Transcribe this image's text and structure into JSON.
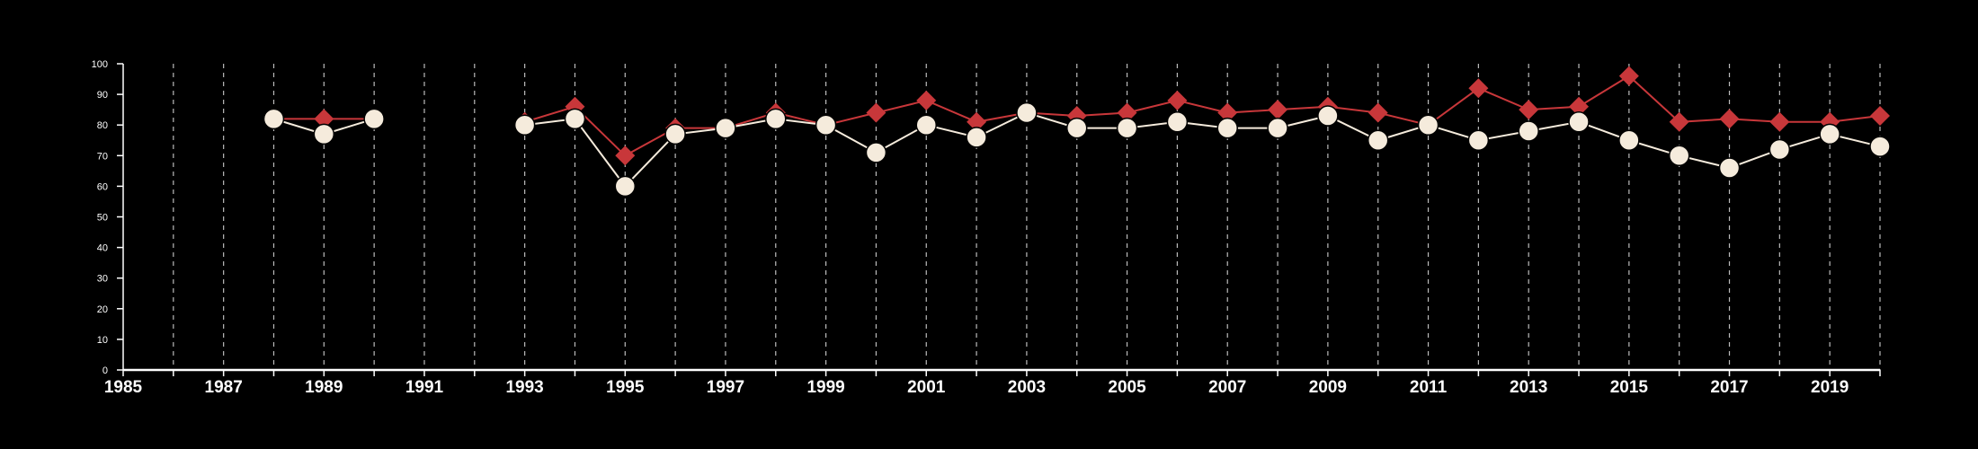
{
  "chart_data": {
    "type": "line",
    "title": "",
    "xlabel": "",
    "ylabel": "",
    "xlim": [
      1985,
      2020
    ],
    "ylim": [
      0,
      100
    ],
    "y_ticks": [
      0,
      10,
      20,
      30,
      40,
      50,
      60,
      70,
      80,
      90,
      100
    ],
    "x_ticks": [
      1985,
      1987,
      1989,
      1991,
      1993,
      1995,
      1997,
      1999,
      2001,
      2003,
      2005,
      2007,
      2009,
      2011,
      2013,
      2015,
      2017,
      2019
    ],
    "y_tick_labels": [
      "0",
      "10",
      "20",
      "30",
      "40",
      "50",
      "60",
      "70",
      "80",
      "90",
      "100"
    ],
    "x_tick_labels": [
      "1985",
      "1987",
      "1989",
      "1991",
      "1993",
      "1995",
      "1997",
      "1999",
      "2001",
      "2003",
      "2005",
      "2007",
      "2009",
      "2011",
      "2013",
      "2015",
      "2017",
      "2019"
    ],
    "grid": "vertical dashed lines at each year",
    "legend": "none",
    "background": "#000000",
    "axis_color": "#ffffff",
    "grid_color": "#bbbbbb",
    "series": [
      {
        "marker": "diamond",
        "color": "#c8373a",
        "points": [
          [
            1988,
            82
          ],
          [
            1989,
            82
          ],
          [
            1990,
            82
          ],
          [
            1993,
            81
          ],
          [
            1994,
            86
          ],
          [
            1995,
            70
          ],
          [
            1996,
            79
          ],
          [
            1997,
            79
          ],
          [
            1998,
            84
          ],
          [
            1999,
            80
          ],
          [
            2000,
            84
          ],
          [
            2001,
            88
          ],
          [
            2002,
            81
          ],
          [
            2003,
            84
          ],
          [
            2004,
            83
          ],
          [
            2005,
            84
          ],
          [
            2006,
            88
          ],
          [
            2007,
            84
          ],
          [
            2008,
            85
          ],
          [
            2009,
            86
          ],
          [
            2010,
            84
          ],
          [
            2011,
            80
          ],
          [
            2012,
            92
          ],
          [
            2013,
            85
          ],
          [
            2014,
            86
          ],
          [
            2015,
            96
          ],
          [
            2016,
            81
          ],
          [
            2017,
            82
          ],
          [
            2018,
            81
          ],
          [
            2019,
            81
          ],
          [
            2020,
            83
          ]
        ]
      },
      {
        "marker": "circle",
        "color": "#f5ebdc",
        "points": [
          [
            1988,
            82
          ],
          [
            1989,
            77
          ],
          [
            1990,
            82
          ],
          [
            1993,
            80
          ],
          [
            1994,
            82
          ],
          [
            1995,
            60
          ],
          [
            1996,
            77
          ],
          [
            1997,
            79
          ],
          [
            1998,
            82
          ],
          [
            1999,
            80
          ],
          [
            2000,
            71
          ],
          [
            2001,
            80
          ],
          [
            2002,
            76
          ],
          [
            2003,
            84
          ],
          [
            2004,
            79
          ],
          [
            2005,
            79
          ],
          [
            2006,
            81
          ],
          [
            2007,
            79
          ],
          [
            2008,
            79
          ],
          [
            2009,
            83
          ],
          [
            2010,
            75
          ],
          [
            2011,
            80
          ],
          [
            2012,
            75
          ],
          [
            2013,
            78
          ],
          [
            2014,
            81
          ],
          [
            2015,
            75
          ],
          [
            2016,
            70
          ],
          [
            2017,
            66
          ],
          [
            2018,
            72
          ],
          [
            2019,
            77
          ],
          [
            2020,
            73
          ]
        ]
      }
    ]
  }
}
